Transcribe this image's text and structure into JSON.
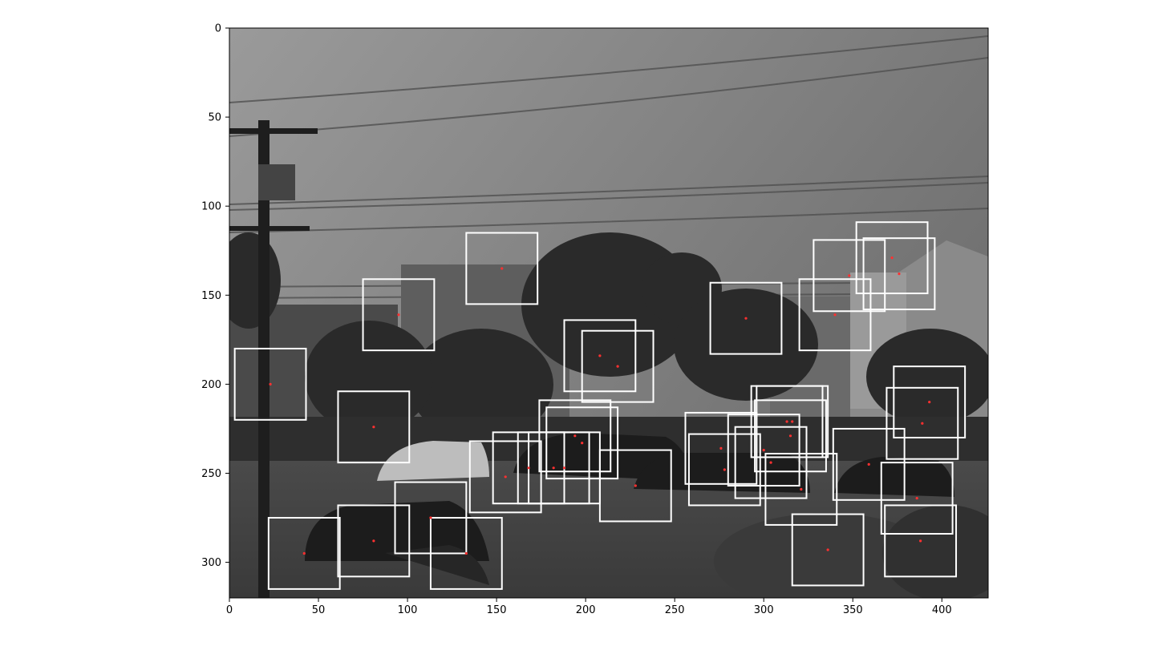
{
  "chart_data": {
    "type": "scatter",
    "title": "",
    "xlabel": "",
    "ylabel": "",
    "xlim": [
      0,
      426
    ],
    "ylim": [
      320,
      0
    ],
    "y_axis_inverted": true,
    "grid": false,
    "background": "grayscale street photograph (utility pole, power lines, trees, houses, parked cars)",
    "x_ticks": [
      0,
      50,
      100,
      150,
      200,
      250,
      300,
      350,
      400
    ],
    "y_ticks": [
      0,
      50,
      100,
      150,
      200,
      250,
      300
    ],
    "box_color": "#ffffff",
    "point_color": "#ff3030",
    "box_size": 40,
    "boxes": [
      {
        "cx": 23,
        "cy": 200
      },
      {
        "cx": 42,
        "cy": 295
      },
      {
        "cx": 81,
        "cy": 288
      },
      {
        "cx": 81,
        "cy": 224
      },
      {
        "cx": 95,
        "cy": 161
      },
      {
        "cx": 113,
        "cy": 275
      },
      {
        "cx": 133,
        "cy": 295
      },
      {
        "cx": 153,
        "cy": 135
      },
      {
        "cx": 155,
        "cy": 252
      },
      {
        "cx": 168,
        "cy": 247
      },
      {
        "cx": 182,
        "cy": 247
      },
      {
        "cx": 188,
        "cy": 247
      },
      {
        "cx": 194,
        "cy": 229
      },
      {
        "cx": 198,
        "cy": 233
      },
      {
        "cx": 208,
        "cy": 184
      },
      {
        "cx": 218,
        "cy": 190
      },
      {
        "cx": 228,
        "cy": 257
      },
      {
        "cx": 276,
        "cy": 236
      },
      {
        "cx": 278,
        "cy": 248
      },
      {
        "cx": 290,
        "cy": 163
      },
      {
        "cx": 300,
        "cy": 237
      },
      {
        "cx": 304,
        "cy": 244
      },
      {
        "cx": 313,
        "cy": 221
      },
      {
        "cx": 315,
        "cy": 229
      },
      {
        "cx": 316,
        "cy": 221
      },
      {
        "cx": 321,
        "cy": 259
      },
      {
        "cx": 336,
        "cy": 293
      },
      {
        "cx": 340,
        "cy": 161
      },
      {
        "cx": 348,
        "cy": 139
      },
      {
        "cx": 359,
        "cy": 245
      },
      {
        "cx": 372,
        "cy": 129
      },
      {
        "cx": 376,
        "cy": 138
      },
      {
        "cx": 386,
        "cy": 264
      },
      {
        "cx": 388,
        "cy": 288
      },
      {
        "cx": 389,
        "cy": 222
      },
      {
        "cx": 393,
        "cy": 210
      }
    ]
  }
}
